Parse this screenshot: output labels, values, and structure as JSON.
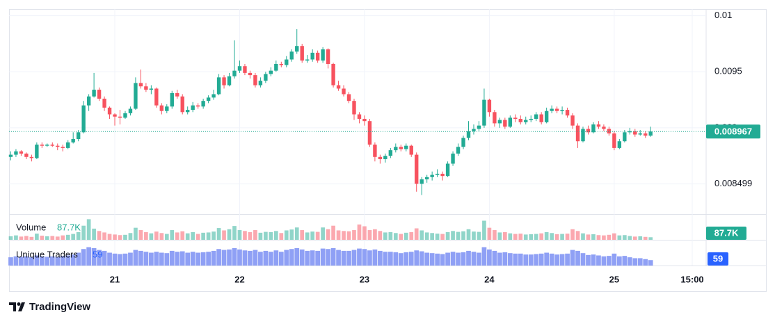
{
  "chart_data": {
    "type": "candlestick",
    "ylim": [
      0.00823,
      0.01006
    ],
    "yticks": [
      0.008499,
      0.009,
      0.0095,
      0.01
    ],
    "xlim": [
      -0.33,
      133.67
    ],
    "xticks": [
      {
        "value": 20,
        "label": "21"
      },
      {
        "value": 44,
        "label": "22"
      },
      {
        "value": 68,
        "label": "23"
      },
      {
        "value": 92,
        "label": "24"
      },
      {
        "value": 116,
        "label": "25"
      },
      {
        "value": 131,
        "label": "15:00"
      }
    ],
    "grid": true,
    "up_color": "#22ab94",
    "down_color": "#f7525f",
    "last_price": 0.008967,
    "open": [
      0.00874,
      0.00876,
      0.00879,
      0.00877,
      0.00874,
      0.00873,
      0.00885,
      0.00884,
      0.00885,
      0.00884,
      0.00883,
      0.00882,
      0.00887,
      0.0089,
      0.00896,
      0.0092,
      0.00928,
      0.00934,
      0.00926,
      0.00918,
      0.00912,
      0.0091,
      0.00909,
      0.00913,
      0.00917,
      0.0094,
      0.00937,
      0.00934,
      0.00935,
      0.0092,
      0.00915,
      0.00919,
      0.00931,
      0.00928,
      0.00914,
      0.00916,
      0.0092,
      0.00919,
      0.00924,
      0.00927,
      0.0093,
      0.00945,
      0.00938,
      0.00946,
      0.00951,
      0.00955,
      0.00949,
      0.00947,
      0.00938,
      0.00942,
      0.00948,
      0.00951,
      0.00957,
      0.00956,
      0.00961,
      0.00968,
      0.00973,
      0.0096,
      0.00961,
      0.00967,
      0.0096,
      0.0097,
      0.00957,
      0.00938,
      0.00935,
      0.0093,
      0.00924,
      0.00912,
      0.00908,
      0.00906,
      0.00885,
      0.00874,
      0.00872,
      0.00875,
      0.0088,
      0.00883,
      0.00881,
      0.00884,
      0.00876,
      0.0085,
      0.00854,
      0.00856,
      0.00858,
      0.00859,
      0.00857,
      0.00868,
      0.00877,
      0.00883,
      0.00891,
      0.00897,
      0.00899,
      0.00902,
      0.00925,
      0.00914,
      0.00904,
      0.00907,
      0.00901,
      0.00909,
      0.00908,
      0.00905,
      0.00907,
      0.00908,
      0.00912,
      0.00905,
      0.00915,
      0.00917,
      0.00915,
      0.00916,
      0.00911,
      0.00902,
      0.00888,
      0.00899,
      0.00896,
      0.00903,
      0.00901,
      0.00899,
      0.00895,
      0.00882,
      0.00888,
      0.00896,
      0.00897,
      0.00894,
      0.00895,
      0.00893
    ],
    "high": [
      0.00879,
      0.00881,
      0.0088,
      0.00878,
      0.00876,
      0.00887,
      0.00887,
      0.00886,
      0.00887,
      0.00886,
      0.00885,
      0.00889,
      0.00896,
      0.00898,
      0.00924,
      0.0093,
      0.00949,
      0.00936,
      0.00928,
      0.00919,
      0.00913,
      0.00916,
      0.00915,
      0.00919,
      0.00945,
      0.00952,
      0.0094,
      0.00938,
      0.00936,
      0.00922,
      0.00921,
      0.00933,
      0.00934,
      0.0093,
      0.00919,
      0.00923,
      0.00922,
      0.00926,
      0.00929,
      0.00934,
      0.00948,
      0.00947,
      0.00949,
      0.00978,
      0.0096,
      0.00957,
      0.00951,
      0.00949,
      0.00945,
      0.0095,
      0.00954,
      0.0096,
      0.00959,
      0.00964,
      0.0097,
      0.00988,
      0.00975,
      0.00965,
      0.0097,
      0.00969,
      0.00972,
      0.00971,
      0.00958,
      0.00942,
      0.00938,
      0.00932,
      0.00926,
      0.00914,
      0.00911,
      0.00908,
      0.00887,
      0.00876,
      0.00877,
      0.00882,
      0.00886,
      0.00885,
      0.00886,
      0.00885,
      0.00878,
      0.00856,
      0.00858,
      0.00861,
      0.00863,
      0.00861,
      0.0087,
      0.00879,
      0.00886,
      0.00893,
      0.00906,
      0.00903,
      0.00906,
      0.00935,
      0.00926,
      0.00916,
      0.00909,
      0.00909,
      0.00911,
      0.00912,
      0.00911,
      0.0091,
      0.00911,
      0.00914,
      0.00914,
      0.00918,
      0.0092,
      0.00919,
      0.00919,
      0.00918,
      0.00913,
      0.00904,
      0.00901,
      0.00902,
      0.00905,
      0.00906,
      0.00903,
      0.00901,
      0.00897,
      0.0089,
      0.00898,
      0.009,
      0.00899,
      0.00898,
      0.00897,
      0.00901
    ],
    "low": [
      0.00871,
      0.00874,
      0.00875,
      0.00872,
      0.0087,
      0.00872,
      0.00882,
      0.00883,
      0.00883,
      0.0088,
      0.00879,
      0.00881,
      0.00886,
      0.00888,
      0.00895,
      0.00915,
      0.00927,
      0.00924,
      0.00915,
      0.00908,
      0.00902,
      0.00903,
      0.00908,
      0.00911,
      0.00916,
      0.00935,
      0.00932,
      0.0093,
      0.00918,
      0.00912,
      0.00913,
      0.00917,
      0.00926,
      0.00912,
      0.00912,
      0.00914,
      0.00917,
      0.00917,
      0.00922,
      0.00925,
      0.00929,
      0.00935,
      0.00937,
      0.00944,
      0.00949,
      0.00947,
      0.00944,
      0.00936,
      0.00936,
      0.0094,
      0.00946,
      0.0095,
      0.00954,
      0.00954,
      0.00959,
      0.00966,
      0.00958,
      0.00958,
      0.00959,
      0.00958,
      0.00958,
      0.00953,
      0.00936,
      0.00933,
      0.00928,
      0.00922,
      0.00907,
      0.00904,
      0.00902,
      0.00883,
      0.0087,
      0.00868,
      0.00869,
      0.00873,
      0.00878,
      0.00879,
      0.00879,
      0.00874,
      0.00843,
      0.0084,
      0.00851,
      0.00853,
      0.00856,
      0.00853,
      0.00856,
      0.00866,
      0.00875,
      0.00881,
      0.00889,
      0.00894,
      0.00897,
      0.009,
      0.0091,
      0.00901,
      0.009,
      0.00899,
      0.009,
      0.00905,
      0.00903,
      0.00903,
      0.00905,
      0.00906,
      0.00903,
      0.00904,
      0.00913,
      0.00913,
      0.00912,
      0.00909,
      0.00899,
      0.00882,
      0.00887,
      0.00894,
      0.00895,
      0.00899,
      0.00897,
      0.00893,
      0.0088,
      0.00881,
      0.00887,
      0.00894,
      0.00892,
      0.00893,
      0.00891,
      0.00892
    ],
    "close": [
      0.00876,
      0.00879,
      0.00877,
      0.00874,
      0.00873,
      0.00885,
      0.00884,
      0.00885,
      0.00884,
      0.00883,
      0.00882,
      0.00887,
      0.0089,
      0.00896,
      0.0092,
      0.00928,
      0.00934,
      0.00926,
      0.00918,
      0.00912,
      0.0091,
      0.00909,
      0.00913,
      0.00917,
      0.0094,
      0.00937,
      0.00934,
      0.00935,
      0.0092,
      0.00915,
      0.00919,
      0.00931,
      0.00928,
      0.00914,
      0.00916,
      0.0092,
      0.00919,
      0.00924,
      0.00927,
      0.0093,
      0.00945,
      0.00938,
      0.00946,
      0.00951,
      0.00955,
      0.00949,
      0.00947,
      0.00938,
      0.00942,
      0.00948,
      0.00951,
      0.00957,
      0.00956,
      0.00961,
      0.00968,
      0.00973,
      0.0096,
      0.00961,
      0.00967,
      0.0096,
      0.0097,
      0.00957,
      0.00938,
      0.00935,
      0.0093,
      0.00924,
      0.00912,
      0.00908,
      0.00906,
      0.00885,
      0.00874,
      0.00872,
      0.00875,
      0.0088,
      0.00883,
      0.00881,
      0.00884,
      0.00876,
      0.0085,
      0.00854,
      0.00856,
      0.00858,
      0.00859,
      0.00857,
      0.00868,
      0.00877,
      0.00883,
      0.00891,
      0.00897,
      0.00899,
      0.00902,
      0.00925,
      0.00914,
      0.00904,
      0.00907,
      0.00901,
      0.00909,
      0.00908,
      0.00905,
      0.00907,
      0.00908,
      0.00912,
      0.00905,
      0.00915,
      0.00917,
      0.00915,
      0.00916,
      0.00911,
      0.00902,
      0.00888,
      0.00899,
      0.00896,
      0.00903,
      0.00901,
      0.00899,
      0.00895,
      0.00882,
      0.00888,
      0.00896,
      0.00897,
      0.00894,
      0.00895,
      0.00893,
      0.008967
    ],
    "volume": {
      "name": "Volume",
      "color": "#22ab94",
      "ylim": [
        0,
        780000
      ],
      "last": {
        "value": 87700,
        "label": "87.7K"
      },
      "values": [
        120000,
        150000,
        110000,
        130000,
        100000,
        210000,
        140000,
        120000,
        130000,
        110000,
        150000,
        170000,
        200000,
        260000,
        480000,
        700000,
        380000,
        300000,
        250000,
        200000,
        180000,
        160000,
        170000,
        230000,
        410000,
        330000,
        260000,
        220000,
        280000,
        230000,
        200000,
        330000,
        250000,
        290000,
        220000,
        260000,
        200000,
        240000,
        250000,
        280000,
        400000,
        320000,
        360000,
        470000,
        330000,
        300000,
        260000,
        330000,
        240000,
        270000,
        260000,
        300000,
        230000,
        320000,
        350000,
        420000,
        330000,
        250000,
        280000,
        270000,
        420000,
        360000,
        480000,
        320000,
        300000,
        290000,
        330000,
        520000,
        460000,
        330000,
        360000,
        300000,
        250000,
        260000,
        230000,
        200000,
        240000,
        260000,
        390000,
        320000,
        250000,
        230000,
        210000,
        200000,
        260000,
        300000,
        270000,
        290000,
        360000,
        280000,
        270000,
        650000,
        410000,
        330000,
        250000,
        260000,
        220000,
        200000,
        210000,
        180000,
        190000,
        200000,
        220000,
        260000,
        230000,
        190000,
        200000,
        210000,
        360000,
        300000,
        220000,
        180000,
        190000,
        160000,
        150000,
        170000,
        220000,
        150000,
        160000,
        130000,
        110000,
        120000,
        100000,
        87700
      ]
    },
    "traders": {
      "name": "Unique Traders",
      "color": "#8fa0f5",
      "label_color": "#2962ff",
      "ylim": [
        0,
        250
      ],
      "last": 59,
      "values": [
        90,
        100,
        95,
        100,
        90,
        110,
        100,
        95,
        100,
        95,
        105,
        110,
        120,
        140,
        180,
        200,
        190,
        170,
        160,
        140,
        130,
        125,
        130,
        140,
        170,
        160,
        150,
        140,
        150,
        140,
        135,
        160,
        150,
        155,
        140,
        150,
        140,
        145,
        150,
        160,
        180,
        170,
        175,
        190,
        175,
        165,
        160,
        170,
        150,
        160,
        150,
        165,
        150,
        170,
        180,
        190,
        175,
        160,
        165,
        160,
        185,
        180,
        190,
        170,
        160,
        160,
        170,
        185,
        180,
        165,
        175,
        160,
        150,
        150,
        145,
        135,
        145,
        150,
        165,
        155,
        140,
        135,
        130,
        125,
        140,
        150,
        140,
        145,
        160,
        150,
        140,
        200,
        175,
        160,
        140,
        145,
        135,
        130,
        130,
        120,
        120,
        125,
        130,
        140,
        130,
        120,
        125,
        130,
        170,
        160,
        135,
        115,
        120,
        110,
        100,
        105,
        130,
        100,
        105,
        90,
        80,
        80,
        70,
        59
      ]
    }
  },
  "footer": {
    "brand": "TradingView"
  }
}
